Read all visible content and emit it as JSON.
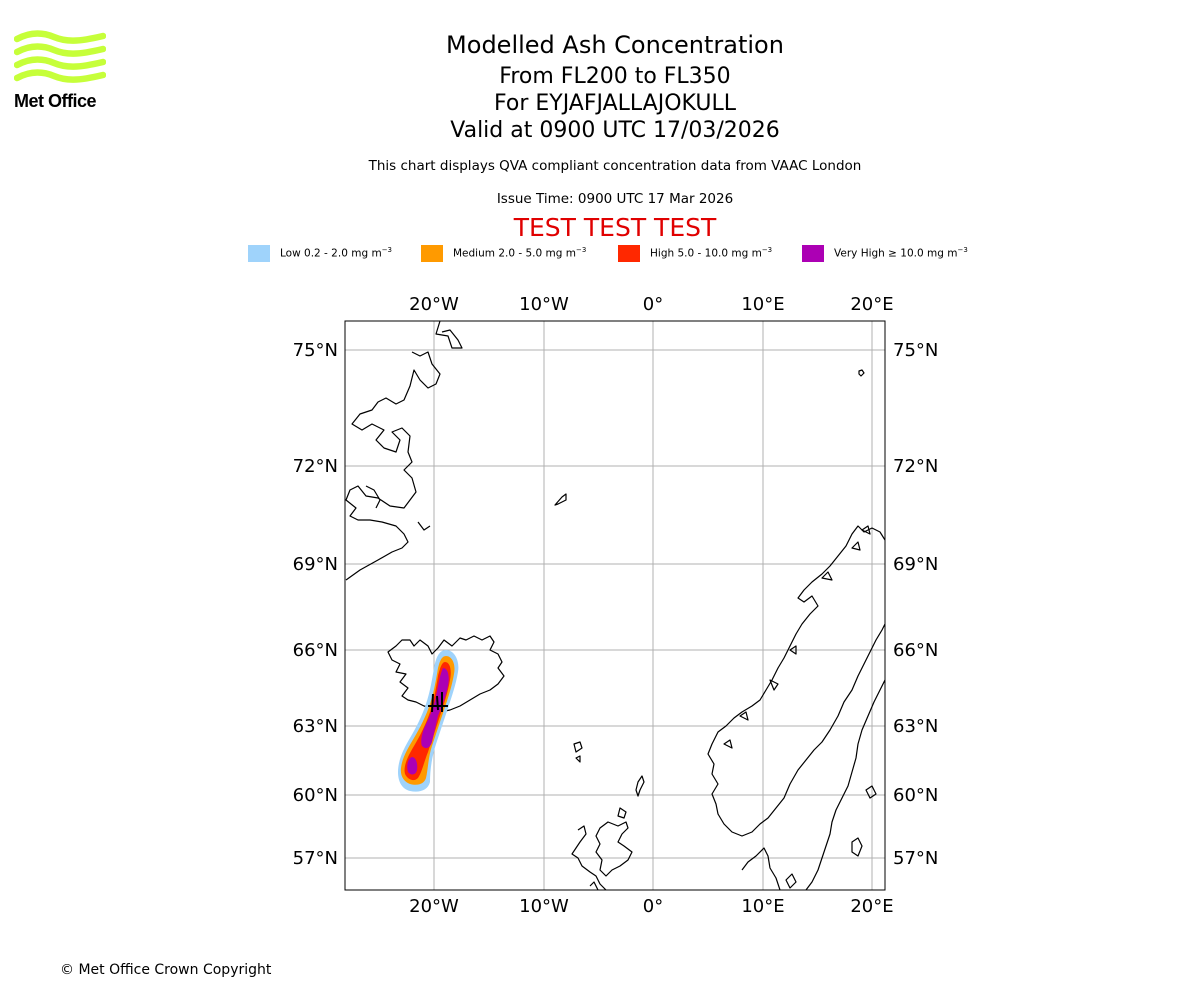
{
  "header": {
    "logo_text": "Met Office",
    "title": "Modelled Ash Concentration",
    "levels": "From FL200 to FL350",
    "volcano": "For EYJAFJALLAJOKULL",
    "valid": "Valid at 0900 UTC 17/03/2026",
    "description": "This chart displays QVA compliant concentration data from VAAC London",
    "issue_time": "Issue Time: 0900 UTC 17 Mar 2026",
    "test_banner": "TEST TEST TEST"
  },
  "legend": [
    {
      "label": "Low 0.2 - 2.0 mg m",
      "unit_exp": "−3",
      "color": "#9fd3fb"
    },
    {
      "label": "Medium 2.0 - 5.0 mg m",
      "unit_exp": "−3",
      "color": "#ff9a00"
    },
    {
      "label": "High 5.0 - 10.0 mg m",
      "unit_exp": "−3",
      "color": "#ff2800"
    },
    {
      "label": "Very High  ≥  10.0 mg m",
      "unit_exp": "−3",
      "color": "#ac00b4"
    }
  ],
  "map": {
    "lon_ticks": [
      "20°W",
      "10°W",
      "0°",
      "10°E",
      "20°E"
    ],
    "lat_ticks": [
      "75°N",
      "72°N",
      "69°N",
      "66°N",
      "63°N",
      "60°N",
      "57°N"
    ],
    "gridline_color": "#b0b0b0",
    "coast_color": "#000000"
  },
  "footer": {
    "copyright": "© Met Office Crown Copyright"
  }
}
